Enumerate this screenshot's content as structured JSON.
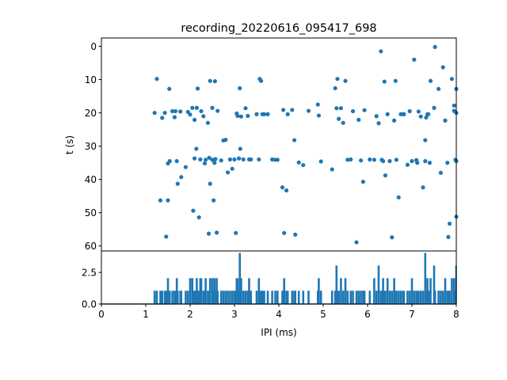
{
  "chart_data": [
    {
      "type": "scatter",
      "title": "recording_20220616_095417_698",
      "xlabel": "",
      "ylabel": "t (s)",
      "xlim": [
        0,
        8
      ],
      "ylim": [
        61.5,
        -2.5
      ],
      "y_inverted": true,
      "yticks": [
        0,
        10,
        20,
        30,
        40,
        50,
        60
      ],
      "color": "#1f77b4",
      "points": [
        [
          1.2,
          20
        ],
        [
          1.25,
          9.8
        ],
        [
          1.33,
          46.3
        ],
        [
          1.37,
          21.5
        ],
        [
          1.43,
          20
        ],
        [
          1.46,
          57.2
        ],
        [
          1.5,
          35.2
        ],
        [
          1.5,
          46.3
        ],
        [
          1.53,
          12.8
        ],
        [
          1.54,
          34.5
        ],
        [
          1.6,
          19.5
        ],
        [
          1.65,
          21.3
        ],
        [
          1.67,
          19.5
        ],
        [
          1.7,
          34.5
        ],
        [
          1.72,
          41.3
        ],
        [
          1.78,
          19.6
        ],
        [
          1.8,
          39.3
        ],
        [
          1.9,
          36.3
        ],
        [
          1.95,
          19.7
        ],
        [
          2.0,
          20.5
        ],
        [
          2.05,
          18.5
        ],
        [
          2.07,
          49.4
        ],
        [
          2.1,
          22.1
        ],
        [
          2.1,
          33.7
        ],
        [
          2.14,
          30.8
        ],
        [
          2.15,
          18.5
        ],
        [
          2.17,
          12.7
        ],
        [
          2.2,
          51.4
        ],
        [
          2.23,
          34.0
        ],
        [
          2.25,
          19.5
        ],
        [
          2.3,
          21.0
        ],
        [
          2.33,
          35.2
        ],
        [
          2.35,
          34.1
        ],
        [
          2.4,
          23.0
        ],
        [
          2.42,
          56.3
        ],
        [
          2.43,
          33.5
        ],
        [
          2.45,
          10.4
        ],
        [
          2.45,
          41.3
        ],
        [
          2.5,
          34.1
        ],
        [
          2.5,
          18.5
        ],
        [
          2.53,
          46.3
        ],
        [
          2.55,
          35.0
        ],
        [
          2.56,
          10.5
        ],
        [
          2.57,
          33.9
        ],
        [
          2.6,
          56.0
        ],
        [
          2.62,
          19.4
        ],
        [
          2.7,
          34.3
        ],
        [
          2.75,
          28.3
        ],
        [
          2.8,
          28.1
        ],
        [
          2.85,
          37.9
        ],
        [
          2.9,
          34.0
        ],
        [
          2.95,
          36.8
        ],
        [
          3.0,
          34.0
        ],
        [
          3.03,
          56.1
        ],
        [
          3.05,
          20.2
        ],
        [
          3.07,
          20.9
        ],
        [
          3.1,
          33.7
        ],
        [
          3.12,
          12.6
        ],
        [
          3.13,
          30.8
        ],
        [
          3.15,
          21.1
        ],
        [
          3.2,
          34.0
        ],
        [
          3.25,
          18.6
        ],
        [
          3.3,
          20.9
        ],
        [
          3.33,
          34.0
        ],
        [
          3.37,
          34.0
        ],
        [
          3.5,
          20.4
        ],
        [
          3.55,
          34.0
        ],
        [
          3.57,
          9.8
        ],
        [
          3.6,
          10.4
        ],
        [
          3.63,
          20.4
        ],
        [
          3.67,
          20.4
        ],
        [
          3.75,
          20.4
        ],
        [
          3.85,
          34.0
        ],
        [
          3.92,
          34.1
        ],
        [
          3.97,
          34.1
        ],
        [
          4.08,
          42.4
        ],
        [
          4.1,
          19.1
        ],
        [
          4.12,
          56.1
        ],
        [
          4.17,
          43.3
        ],
        [
          4.2,
          20.4
        ],
        [
          4.3,
          19.1
        ],
        [
          4.35,
          28.2
        ],
        [
          4.37,
          56.6
        ],
        [
          4.45,
          34.9
        ],
        [
          4.55,
          35.7
        ],
        [
          4.67,
          19.4
        ],
        [
          4.88,
          17.5
        ],
        [
          4.9,
          20.8
        ],
        [
          4.95,
          34.6
        ],
        [
          5.2,
          37.0
        ],
        [
          5.27,
          12.6
        ],
        [
          5.3,
          18.6
        ],
        [
          5.32,
          9.8
        ],
        [
          5.35,
          21.8
        ],
        [
          5.4,
          18.6
        ],
        [
          5.45,
          23.0
        ],
        [
          5.5,
          10.4
        ],
        [
          5.55,
          34.1
        ],
        [
          5.62,
          34.0
        ],
        [
          5.67,
          19.5
        ],
        [
          5.75,
          58.9
        ],
        [
          5.8,
          22.1
        ],
        [
          5.85,
          34.3
        ],
        [
          5.9,
          40.7
        ],
        [
          5.93,
          19.2
        ],
        [
          6.05,
          34.0
        ],
        [
          6.15,
          34.1
        ],
        [
          6.2,
          21.0
        ],
        [
          6.25,
          23.1
        ],
        [
          6.3,
          1.5
        ],
        [
          6.32,
          34.1
        ],
        [
          6.35,
          34.5
        ],
        [
          6.38,
          10.6
        ],
        [
          6.4,
          38.8
        ],
        [
          6.45,
          20.4
        ],
        [
          6.5,
          34.5
        ],
        [
          6.55,
          57.4
        ],
        [
          6.6,
          22.3
        ],
        [
          6.63,
          10.4
        ],
        [
          6.65,
          34.1
        ],
        [
          6.7,
          45.4
        ],
        [
          6.75,
          20.4
        ],
        [
          6.8,
          20.4
        ],
        [
          6.82,
          20.4
        ],
        [
          6.9,
          35.6
        ],
        [
          6.95,
          19.5
        ],
        [
          7.0,
          34.5
        ],
        [
          7.05,
          4.0
        ],
        [
          7.1,
          34.2
        ],
        [
          7.12,
          35.0
        ],
        [
          7.15,
          19.6
        ],
        [
          7.2,
          21.1
        ],
        [
          7.25,
          42.4
        ],
        [
          7.3,
          34.5
        ],
        [
          7.3,
          28.2
        ],
        [
          7.32,
          21.4
        ],
        [
          7.35,
          20.4
        ],
        [
          7.37,
          20.4
        ],
        [
          7.4,
          35.0
        ],
        [
          7.42,
          10.4
        ],
        [
          7.5,
          18.5
        ],
        [
          7.52,
          0.2
        ],
        [
          7.6,
          12.8
        ],
        [
          7.65,
          38.0
        ],
        [
          7.7,
          6.3
        ],
        [
          7.75,
          22.3
        ],
        [
          7.8,
          35.0
        ],
        [
          7.82,
          57.3
        ],
        [
          7.85,
          53.3
        ],
        [
          7.9,
          9.8
        ],
        [
          7.95,
          17.8
        ],
        [
          7.98,
          34.1
        ],
        [
          8.0,
          51.2
        ],
        [
          8.0,
          12.8
        ],
        [
          8.0,
          20.0
        ],
        [
          7.95,
          19.4
        ],
        [
          8.0,
          34.5
        ]
      ]
    },
    {
      "type": "bar",
      "title": "",
      "xlabel": "IPI (ms)",
      "ylabel": "",
      "xlim": [
        0,
        8
      ],
      "ylim": [
        0,
        4.2
      ],
      "xticks": [
        0,
        1,
        2,
        3,
        4,
        5,
        6,
        7,
        8
      ],
      "yticks": [
        0.0,
        2.5
      ],
      "ytick_labels": [
        "0.0",
        "2.5"
      ],
      "color": "#1f77b4",
      "bin_width": 0.02,
      "x": [
        1.2,
        1.25,
        1.33,
        1.37,
        1.43,
        1.46,
        1.5,
        1.53,
        1.54,
        1.6,
        1.65,
        1.67,
        1.7,
        1.72,
        1.78,
        1.8,
        1.9,
        1.95,
        2.0,
        2.05,
        2.07,
        2.1,
        2.14,
        2.15,
        2.17,
        2.2,
        2.23,
        2.25,
        2.3,
        2.33,
        2.35,
        2.4,
        2.42,
        2.43,
        2.45,
        2.5,
        2.53,
        2.55,
        2.56,
        2.57,
        2.6,
        2.62,
        2.7,
        2.75,
        2.8,
        2.85,
        2.9,
        2.95,
        3.0,
        3.03,
        3.05,
        3.07,
        3.1,
        3.12,
        3.13,
        3.15,
        3.2,
        3.25,
        3.3,
        3.33,
        3.37,
        3.5,
        3.55,
        3.57,
        3.6,
        3.63,
        3.67,
        3.75,
        3.85,
        3.92,
        3.97,
        4.08,
        4.1,
        4.12,
        4.17,
        4.2,
        4.3,
        4.35,
        4.37,
        4.45,
        4.55,
        4.67,
        4.88,
        4.9,
        4.95,
        5.2,
        5.27,
        5.3,
        5.32,
        5.35,
        5.4,
        5.45,
        5.5,
        5.55,
        5.62,
        5.67,
        5.75,
        5.8,
        5.85,
        5.9,
        5.93,
        6.05,
        6.15,
        6.2,
        6.25,
        6.3,
        6.32,
        6.35,
        6.38,
        6.4,
        6.45,
        6.5,
        6.55,
        6.6,
        6.63,
        6.65,
        6.7,
        6.75,
        6.8,
        6.82,
        6.9,
        6.95,
        7.0,
        7.05,
        7.1,
        7.12,
        7.15,
        7.2,
        7.25,
        7.3,
        7.32,
        7.35,
        7.37,
        7.4,
        7.42,
        7.5,
        7.52,
        7.6,
        7.65,
        7.7,
        7.75,
        7.8,
        7.82,
        7.85,
        7.9,
        7.95,
        7.98,
        8.0
      ],
      "values": [
        1,
        1,
        1,
        1,
        1,
        1,
        2,
        1,
        1,
        1,
        1,
        1,
        2,
        1,
        1,
        1,
        1,
        1,
        2,
        2,
        1,
        1,
        1,
        2,
        1,
        1,
        2,
        2,
        1,
        1,
        2,
        1,
        1,
        1,
        2,
        2,
        1,
        2,
        1,
        1,
        2,
        1,
        1,
        1,
        1,
        1,
        1,
        1,
        1,
        1,
        2,
        2,
        1,
        4,
        1,
        2,
        1,
        1,
        1,
        2,
        1,
        1,
        2,
        1,
        1,
        1,
        1,
        1,
        1,
        1,
        1,
        1,
        1,
        2,
        1,
        1,
        1,
        1,
        1,
        1,
        1,
        1,
        1,
        2,
        1,
        1,
        1,
        3,
        1,
        1,
        2,
        1,
        2,
        1,
        1,
        1,
        1,
        1,
        1,
        1,
        1,
        1,
        2,
        1,
        3,
        1,
        1,
        2,
        1,
        1,
        2,
        1,
        1,
        2,
        1,
        1,
        1,
        1,
        1,
        1,
        1,
        1,
        2,
        1,
        1,
        1,
        1,
        1,
        1,
        4,
        1,
        2,
        1,
        1,
        2,
        3,
        1,
        1,
        1,
        1,
        2,
        1,
        1,
        1,
        2,
        2,
        1,
        3
      ]
    }
  ]
}
